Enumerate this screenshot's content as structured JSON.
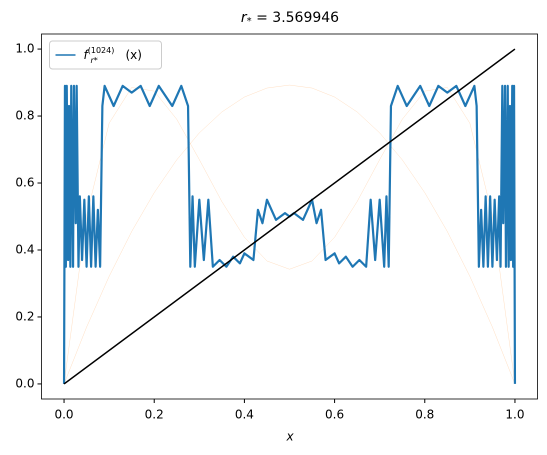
{
  "chart_data": {
    "type": "line",
    "title": {
      "symbol": "r",
      "sub": "*",
      "text": " = 3.569946"
    },
    "xlabel": "x",
    "xlim": [
      -0.05,
      1.05
    ],
    "ylim": [
      -0.045,
      1.045
    ],
    "xticks": [
      {
        "value": 0,
        "label": "0.0"
      },
      {
        "value": 0.2,
        "label": "0.2"
      },
      {
        "value": 0.4,
        "label": "0.4"
      },
      {
        "value": 0.6,
        "label": "0.6"
      },
      {
        "value": 0.8,
        "label": "0.8"
      },
      {
        "value": 1,
        "label": "1.0"
      }
    ],
    "yticks": [
      {
        "value": 0,
        "label": "0.0"
      },
      {
        "value": 0.2,
        "label": "0.2"
      },
      {
        "value": 0.4,
        "label": "0.4"
      },
      {
        "value": 0.6,
        "label": "0.6"
      },
      {
        "value": 0.8,
        "label": "0.8"
      },
      {
        "value": 1,
        "label": "1.0"
      }
    ],
    "legend": "upper left",
    "series": [
      {
        "name": {
          "base": "f",
          "sup": "(1024)",
          "sub": "r*",
          "arg": "(x)"
        },
        "color": "#1f77b4",
        "width": 2.2,
        "x": [
          0,
          0.002,
          0.004,
          0.006,
          0.009,
          0.011,
          0.014,
          0.016,
          0.02,
          0.022,
          0.026,
          0.028,
          0.032,
          0.035,
          0.04,
          0.045,
          0.05,
          0.055,
          0.06,
          0.065,
          0.07,
          0.075,
          0.08,
          0.085,
          0.09,
          0.11,
          0.13,
          0.15,
          0.17,
          0.19,
          0.21,
          0.24,
          0.26,
          0.275,
          0.28,
          0.285,
          0.29,
          0.3,
          0.31,
          0.32,
          0.33,
          0.345,
          0.36,
          0.375,
          0.39,
          0.4,
          0.42,
          0.43,
          0.44,
          0.45,
          0.47,
          0.49,
          0.5,
          0.51,
          0.53,
          0.55,
          0.56,
          0.57,
          0.58,
          0.6,
          0.61,
          0.625,
          0.64,
          0.655,
          0.67,
          0.68,
          0.69,
          0.7,
          0.71,
          0.715,
          0.72,
          0.725,
          0.74,
          0.76,
          0.79,
          0.81,
          0.83,
          0.85,
          0.87,
          0.89,
          0.91,
          0.915,
          0.92,
          0.925,
          0.93,
          0.935,
          0.94,
          0.945,
          0.95,
          0.955,
          0.96,
          0.965,
          0.968,
          0.972,
          0.974,
          0.978,
          0.98,
          0.984,
          0.986,
          0.989,
          0.991,
          0.994,
          0.996,
          0.998,
          1
        ],
        "values": [
          0,
          0.89,
          0.35,
          0.89,
          0.37,
          0.83,
          0.35,
          0.89,
          0.35,
          0.89,
          0.48,
          0.89,
          0.35,
          0.56,
          0.37,
          0.55,
          0.35,
          0.56,
          0.35,
          0.56,
          0.35,
          0.52,
          0.35,
          0.83,
          0.89,
          0.83,
          0.89,
          0.87,
          0.89,
          0.83,
          0.89,
          0.83,
          0.89,
          0.83,
          0.35,
          0.56,
          0.35,
          0.55,
          0.37,
          0.55,
          0.35,
          0.37,
          0.35,
          0.38,
          0.36,
          0.39,
          0.37,
          0.52,
          0.48,
          0.55,
          0.49,
          0.51,
          0.5,
          0.51,
          0.49,
          0.55,
          0.48,
          0.52,
          0.37,
          0.39,
          0.36,
          0.38,
          0.35,
          0.37,
          0.35,
          0.55,
          0.37,
          0.55,
          0.35,
          0.56,
          0.35,
          0.83,
          0.89,
          0.83,
          0.89,
          0.83,
          0.89,
          0.87,
          0.89,
          0.83,
          0.89,
          0.83,
          0.35,
          0.52,
          0.35,
          0.56,
          0.35,
          0.56,
          0.35,
          0.55,
          0.37,
          0.56,
          0.35,
          0.89,
          0.48,
          0.89,
          0.35,
          0.89,
          0.35,
          0.83,
          0.37,
          0.89,
          0.35,
          0.89,
          0
        ]
      },
      {
        "color": "#ff7f0e",
        "width": 0.5,
        "opacity": 0.25,
        "x": [
          0,
          0.05,
          0.1,
          0.15,
          0.2,
          0.25,
          0.3,
          0.35,
          0.4,
          0.45,
          0.5,
          0.55,
          0.6,
          0.65,
          0.7,
          0.75,
          0.8,
          0.85,
          0.9,
          0.95,
          1
        ],
        "values": [
          0,
          0.1696,
          0.3213,
          0.4552,
          0.5712,
          0.6693,
          0.7497,
          0.8122,
          0.8568,
          0.8836,
          0.8925,
          0.8836,
          0.8568,
          0.8122,
          0.7497,
          0.6693,
          0.5712,
          0.4552,
          0.3213,
          0.1696,
          0
        ]
      },
      {
        "color": "#ff7f0e",
        "width": 0.5,
        "opacity": 0.25,
        "x": [
          0,
          0.05,
          0.1,
          0.15,
          0.2,
          0.25,
          0.3,
          0.35,
          0.4,
          0.45,
          0.5,
          0.55,
          0.6,
          0.65,
          0.7,
          0.75,
          0.8,
          0.85,
          0.9,
          0.95,
          1
        ],
        "values": [
          0,
          0.5027,
          0.7785,
          0.8853,
          0.8744,
          0.7902,
          0.6699,
          0.5445,
          0.438,
          0.3672,
          0.3425,
          0.3672,
          0.438,
          0.5445,
          0.6699,
          0.7902,
          0.8744,
          0.8853,
          0.7785,
          0.5027,
          0
        ]
      },
      {
        "color": "#000000",
        "width": 1.5,
        "x": [
          0,
          1
        ],
        "values": [
          0,
          1
        ]
      }
    ]
  }
}
